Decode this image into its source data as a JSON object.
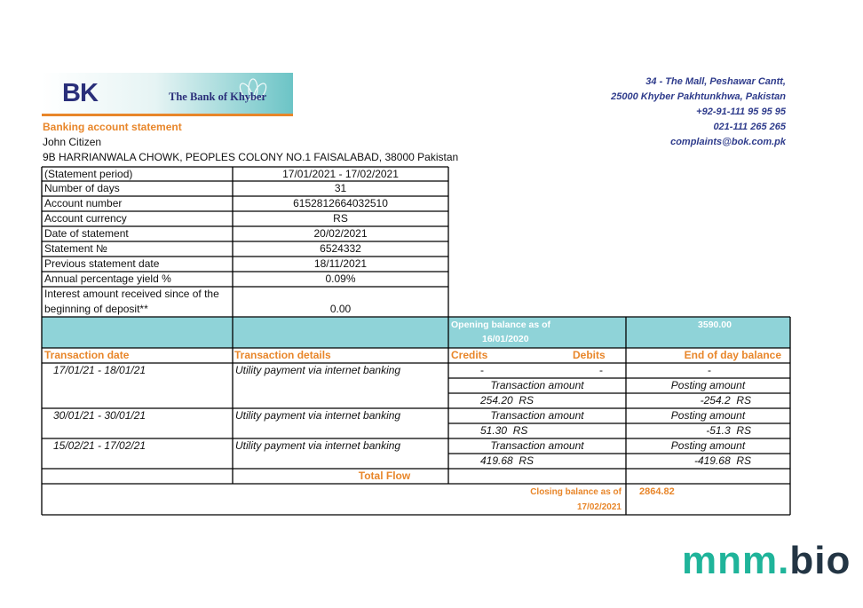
{
  "header": {
    "logo_abbr": "BK",
    "bank_name": "The Bank of Khyber"
  },
  "address": [
    "34 - The Mall, Peshawar Cantt,",
    "25000 Khyber Pakhtunkhwa, Pakistan",
    "+92-91-111 95 95 95",
    "021-111 265 265",
    "complaints@bok.com.pk"
  ],
  "document_title": "Banking account statement",
  "customer": {
    "name": "John Citizen",
    "address": "9B HARRIANWALA CHOWK, PEOPLES COLONY NO.1 FAISALABAD, 38000 Pakistan"
  },
  "summary": [
    [
      "(Statement period)",
      "17/01/2021 - 17/02/2021"
    ],
    [
      "Number of days",
      "31"
    ],
    [
      "Account number",
      "6152812664032510"
    ],
    [
      "Account currency",
      "RS"
    ],
    [
      "Date of statement",
      "20/02/2021"
    ],
    [
      "Statement №",
      "6524332"
    ],
    [
      "Previous statement date",
      "18/11/2021"
    ],
    [
      "Annual percentage yield %",
      "0.09%"
    ],
    [
      "Interest amount received since of the beginning of deposit**",
      "0.00"
    ]
  ],
  "opening_balance": {
    "label": "Opening  balance as of",
    "date": "16/01/2020",
    "amount": "3590.00"
  },
  "columns": [
    "Transaction date",
    "Transaction details",
    "Credits",
    "Debits",
    "End of day balance"
  ],
  "transactions": [
    {
      "date": "17/01/21 - 18/01/21",
      "details": "Utility payment via internet banking",
      "credit": "-",
      "debit": "-",
      "balance": "-",
      "amount_label": "Transaction amount",
      "posting_label": "Posting amount",
      "amount": "254.20  RS",
      "posting": "-254.2  RS"
    },
    {
      "date": "30/01/21 - 30/01/21",
      "details": "Utility payment via internet banking",
      "amount_label": "Transaction amount",
      "posting_label": "Posting amount",
      "amount": "51.30  RS",
      "posting": "-51.3  RS"
    },
    {
      "date": "15/02/21 - 17/02/21",
      "details": "Utility  payment via internet banking",
      "amount_label": "Transaction amount",
      "posting_label": "Posting amount",
      "amount": "419.68  RS",
      "posting": "-419.68  RS"
    }
  ],
  "total_flow": "Total Flow",
  "closing_balance": {
    "label": "Closing balance as of",
    "date": "17/02/2021",
    "amount": "2864.82"
  },
  "watermark": [
    "mnm.",
    "bio"
  ]
}
